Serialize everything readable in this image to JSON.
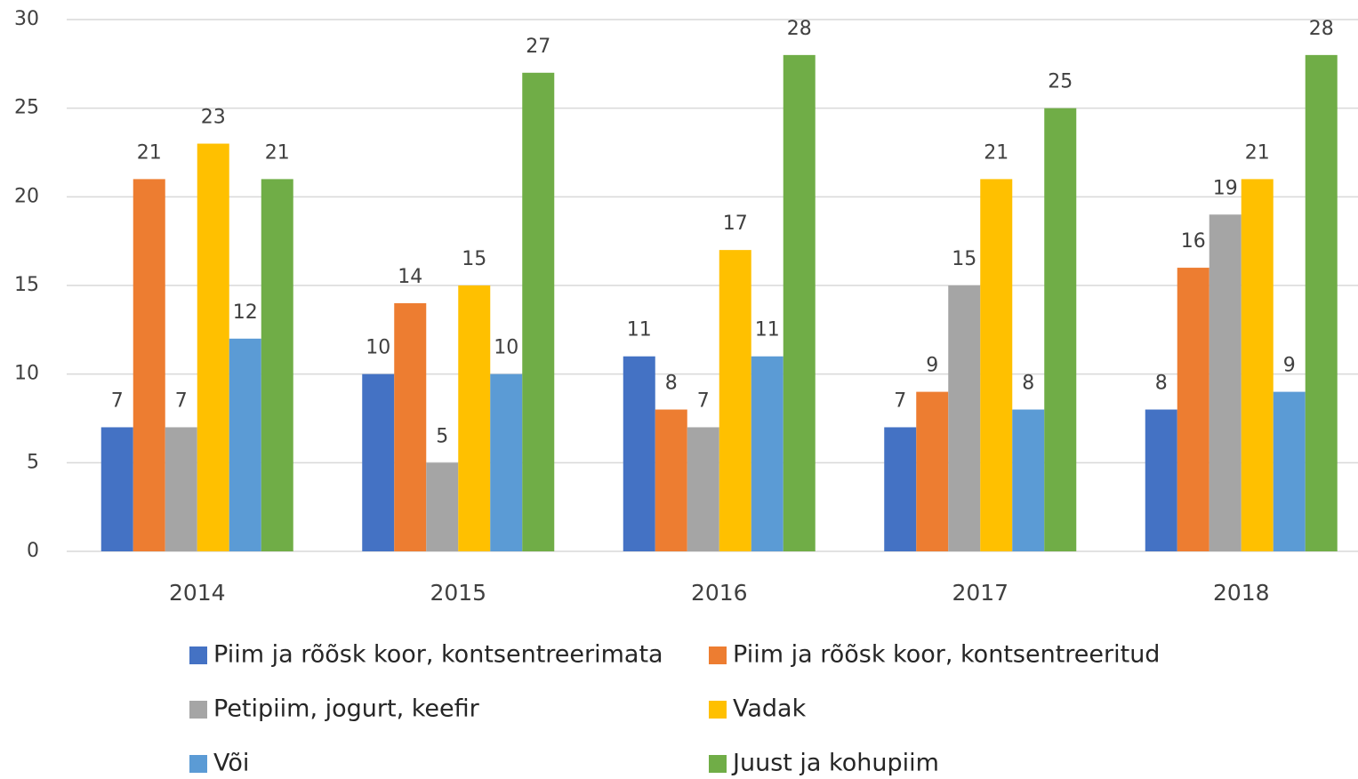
{
  "chart_data": {
    "type": "bar",
    "categories": [
      "2014",
      "2015",
      "2016",
      "2017",
      "2018"
    ],
    "series": [
      {
        "name": "Piim ja rõõsk koor, kontsentreerimata",
        "color": "#4472c4",
        "values": [
          7,
          10,
          11,
          7,
          8
        ]
      },
      {
        "name": "Piim ja rõõsk koor, kontsentreeritud",
        "color": "#ed7d31",
        "values": [
          21,
          14,
          8,
          9,
          16
        ]
      },
      {
        "name": "Petipiim, jogurt, keefir",
        "color": "#a5a5a5",
        "values": [
          7,
          5,
          7,
          15,
          19
        ]
      },
      {
        "name": "Vadak",
        "color": "#ffc000",
        "values": [
          23,
          15,
          17,
          21,
          21
        ]
      },
      {
        "name": "Või",
        "color": "#5b9bd5",
        "values": [
          12,
          10,
          11,
          8,
          9
        ]
      },
      {
        "name": "Juust ja kohupiim",
        "color": "#70ad47",
        "values": [
          21,
          27,
          28,
          25,
          28
        ]
      }
    ],
    "ylim": [
      0,
      30
    ],
    "yticks": [
      0,
      5,
      10,
      15,
      20,
      25,
      30
    ],
    "grid": true,
    "legend": "bottom"
  }
}
